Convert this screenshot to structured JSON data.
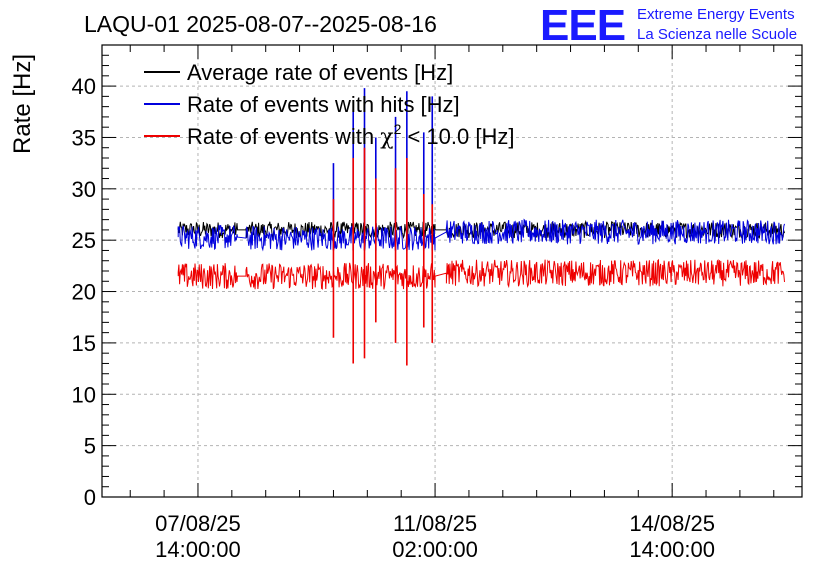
{
  "chart_data": {
    "type": "line",
    "title": "LAQU-01 2025-08-07--2025-08-16",
    "ylabel": "Rate [Hz]",
    "xlabel": "",
    "ylim": [
      0,
      44
    ],
    "yticks": [
      0,
      5,
      10,
      15,
      20,
      25,
      30,
      35,
      40
    ],
    "x_range_days": [
      "2025-08-06 04:00",
      "2025-08-16 12:00"
    ],
    "xticks": [
      {
        "date": "07/08/25",
        "time": "14:00:00"
      },
      {
        "date": "11/08/25",
        "time": "02:00:00"
      },
      {
        "date": "14/08/25",
        "time": "14:00:00"
      }
    ],
    "grid": true,
    "legend_position": "top-left",
    "legend": {
      "avg": "Average rate of events [Hz]",
      "hits": "Rate of events with hits [Hz]",
      "chi_prefix": "Rate of events with ",
      "chi_symbol": "χ",
      "chi_exp": "2",
      "chi_suffix": " < 10.0 [Hz]"
    },
    "series": [
      {
        "key": "avg",
        "name": "Average rate of events [Hz]",
        "color": "#000000",
        "segments": [
          {
            "start": "2025-08-07 07:00",
            "end": "2025-08-08 04:00",
            "mean": 26.0
          },
          {
            "start": "2025-08-08 07:00",
            "end": "2025-08-11 02:00",
            "mean": 26.0
          },
          {
            "start": "2025-08-11 06:00",
            "end": "2025-08-16 06:00",
            "mean": 26.0
          }
        ],
        "spread": 0.8
      },
      {
        "key": "hits",
        "name": "Rate of events with hits [Hz]",
        "color": "#0000dd",
        "segments": [
          {
            "start": "2025-08-07 07:00",
            "end": "2025-08-08 04:00",
            "mean": 25.3
          },
          {
            "start": "2025-08-08 07:00",
            "end": "2025-08-11 02:00",
            "mean": 25.2
          },
          {
            "start": "2025-08-11 06:00",
            "end": "2025-08-16 06:00",
            "mean": 25.8
          }
        ],
        "spread": 1.2,
        "spikes": [
          {
            "x": "2025-08-09 14:00",
            "min": 24.0,
            "max": 32.5
          },
          {
            "x": "2025-08-09 21:00",
            "min": 24.0,
            "max": 37.5
          },
          {
            "x": "2025-08-10 01:00",
            "min": 24.0,
            "max": 39.8
          },
          {
            "x": "2025-08-10 05:00",
            "min": 24.0,
            "max": 35.0
          },
          {
            "x": "2025-08-10 12:00",
            "min": 24.0,
            "max": 37.0
          },
          {
            "x": "2025-08-10 16:00",
            "min": 24.0,
            "max": 39.5
          },
          {
            "x": "2025-08-10 22:00",
            "min": 24.0,
            "max": 35.5
          },
          {
            "x": "2025-08-11 01:00",
            "min": 24.0,
            "max": 39.0
          }
        ]
      },
      {
        "key": "chi",
        "name": "Rate of events with χ² < 10.0 [Hz]",
        "color": "#ee0000",
        "segments": [
          {
            "start": "2025-08-07 07:00",
            "end": "2025-08-08 04:00",
            "mean": 21.5
          },
          {
            "start": "2025-08-08 07:00",
            "end": "2025-08-11 02:00",
            "mean": 21.5
          },
          {
            "start": "2025-08-11 06:00",
            "end": "2025-08-16 06:00",
            "mean": 21.8
          }
        ],
        "spread": 1.3,
        "spikes": [
          {
            "x": "2025-08-09 14:00",
            "min": 15.5,
            "max": 29.0
          },
          {
            "x": "2025-08-09 21:00",
            "min": 13.0,
            "max": 33.0
          },
          {
            "x": "2025-08-10 01:00",
            "min": 13.5,
            "max": 34.0
          },
          {
            "x": "2025-08-10 05:00",
            "min": 17.0,
            "max": 31.0
          },
          {
            "x": "2025-08-10 12:00",
            "min": 15.0,
            "max": 32.0
          },
          {
            "x": "2025-08-10 16:00",
            "min": 12.8,
            "max": 33.0
          },
          {
            "x": "2025-08-10 22:00",
            "min": 16.5,
            "max": 29.5
          },
          {
            "x": "2025-08-11 01:00",
            "min": 15.0,
            "max": 28.5
          }
        ]
      }
    ]
  },
  "brand": {
    "logo_text": "EEE",
    "line1": "Extreme Energy Events",
    "line2": "La Scienza nelle Scuole",
    "color": "#1a1aff"
  }
}
